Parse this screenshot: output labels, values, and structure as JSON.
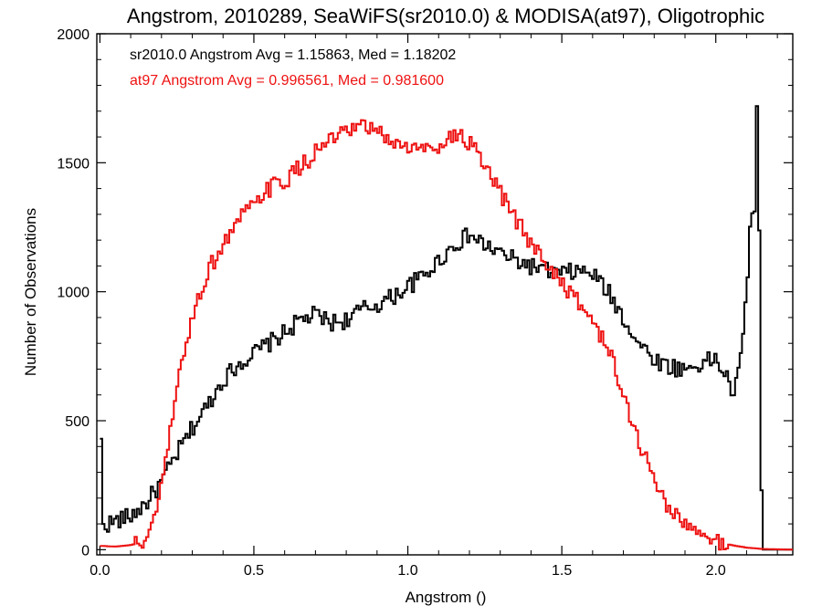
{
  "chart_data": {
    "type": "histogram-step",
    "title": "Angstrom, 2010289, SeaWiFS(sr2010.0) & MODISA(at97), Oligotrophic",
    "xlabel": "Angstrom ()",
    "ylabel": "Number of Observations",
    "xlim": [
      -0.01,
      2.25
    ],
    "ylim": [
      -20,
      2000
    ],
    "x_ticks": [
      {
        "value": 0.0,
        "label": "0.0"
      },
      {
        "value": 0.5,
        "label": "0.5"
      },
      {
        "value": 1.0,
        "label": "1.0"
      },
      {
        "value": 1.5,
        "label": "1.5"
      },
      {
        "value": 2.0,
        "label": "2.0"
      }
    ],
    "y_ticks": [
      {
        "value": 0,
        "label": "0"
      },
      {
        "value": 500,
        "label": "500"
      },
      {
        "value": 1000,
        "label": "1000"
      },
      {
        "value": 1500,
        "label": "1500"
      },
      {
        "value": 2000,
        "label": "2000"
      }
    ],
    "grid": false,
    "annotations": [
      {
        "text": "sr2010.0 Angstrom Avg = 1.15863, Med = 1.18202",
        "color": "#000000"
      },
      {
        "text": "at97 Angstrom Avg = 0.996561, Med = 0.981600",
        "color": "#ee1111"
      }
    ],
    "series": [
      {
        "color": "#000000",
        "points": [
          [
            0.0,
            100
          ],
          [
            0.005,
            430
          ],
          [
            0.01,
            95
          ],
          [
            0.05,
            110
          ],
          [
            0.1,
            130
          ],
          [
            0.15,
            180
          ],
          [
            0.2,
            260
          ],
          [
            0.25,
            370
          ],
          [
            0.3,
            470
          ],
          [
            0.35,
            560
          ],
          [
            0.4,
            660
          ],
          [
            0.45,
            720
          ],
          [
            0.5,
            760
          ],
          [
            0.55,
            800
          ],
          [
            0.6,
            840
          ],
          [
            0.65,
            890
          ],
          [
            0.7,
            910
          ],
          [
            0.75,
            880
          ],
          [
            0.8,
            890
          ],
          [
            0.85,
            930
          ],
          [
            0.9,
            950
          ],
          [
            0.95,
            980
          ],
          [
            1.0,
            1020
          ],
          [
            1.05,
            1060
          ],
          [
            1.1,
            1120
          ],
          [
            1.15,
            1180
          ],
          [
            1.2,
            1220
          ],
          [
            1.25,
            1180
          ],
          [
            1.3,
            1150
          ],
          [
            1.35,
            1120
          ],
          [
            1.4,
            1100
          ],
          [
            1.45,
            1080
          ],
          [
            1.5,
            1070
          ],
          [
            1.55,
            1080
          ],
          [
            1.6,
            1070
          ],
          [
            1.65,
            1000
          ],
          [
            1.7,
            900
          ],
          [
            1.75,
            800
          ],
          [
            1.8,
            740
          ],
          [
            1.85,
            710
          ],
          [
            1.9,
            700
          ],
          [
            1.95,
            720
          ],
          [
            2.0,
            740
          ],
          [
            2.03,
            680
          ],
          [
            2.06,
            600
          ],
          [
            2.08,
            720
          ],
          [
            2.1,
            1000
          ],
          [
            2.115,
            1350
          ],
          [
            2.125,
            1200
          ],
          [
            2.135,
            1820
          ],
          [
            2.145,
            920
          ],
          [
            2.15,
            0
          ],
          [
            2.25,
            0
          ]
        ]
      },
      {
        "color": "#ee1111",
        "points": [
          [
            0.0,
            15
          ],
          [
            0.05,
            12
          ],
          [
            0.1,
            18
          ],
          [
            0.15,
            35
          ],
          [
            0.175,
            100
          ],
          [
            0.2,
            250
          ],
          [
            0.225,
            420
          ],
          [
            0.25,
            620
          ],
          [
            0.275,
            780
          ],
          [
            0.3,
            900
          ],
          [
            0.325,
            990
          ],
          [
            0.35,
            1080
          ],
          [
            0.4,
            1180
          ],
          [
            0.45,
            1280
          ],
          [
            0.5,
            1330
          ],
          [
            0.55,
            1400
          ],
          [
            0.6,
            1430
          ],
          [
            0.65,
            1480
          ],
          [
            0.7,
            1540
          ],
          [
            0.75,
            1590
          ],
          [
            0.8,
            1610
          ],
          [
            0.85,
            1640
          ],
          [
            0.9,
            1620
          ],
          [
            0.95,
            1580
          ],
          [
            1.0,
            1560
          ],
          [
            1.05,
            1550
          ],
          [
            1.1,
            1570
          ],
          [
            1.15,
            1610
          ],
          [
            1.2,
            1580
          ],
          [
            1.25,
            1480
          ],
          [
            1.3,
            1380
          ],
          [
            1.35,
            1280
          ],
          [
            1.4,
            1190
          ],
          [
            1.45,
            1110
          ],
          [
            1.5,
            1040
          ],
          [
            1.55,
            960
          ],
          [
            1.6,
            890
          ],
          [
            1.65,
            780
          ],
          [
            1.7,
            600
          ],
          [
            1.75,
            420
          ],
          [
            1.8,
            270
          ],
          [
            1.85,
            160
          ],
          [
            1.9,
            95
          ],
          [
            1.95,
            55
          ],
          [
            2.0,
            30
          ],
          [
            2.05,
            18
          ],
          [
            2.1,
            8
          ],
          [
            2.15,
            3
          ],
          [
            2.25,
            0
          ]
        ]
      }
    ]
  }
}
